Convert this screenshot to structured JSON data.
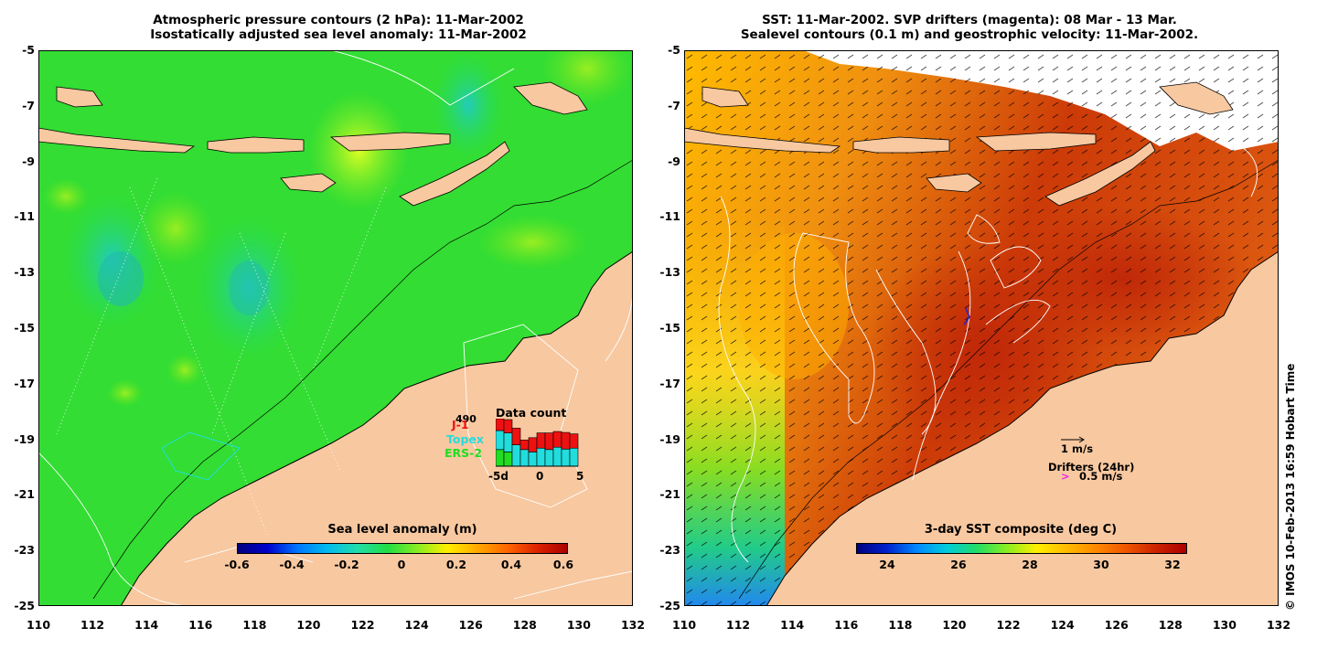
{
  "left_panel": {
    "title_line1": "Atmospheric pressure contours (2 hPa): 11-Mar-2002",
    "title_line2": "Isostatically adjusted sea level anomaly: 11-Mar-2002",
    "colorbar": {
      "label": "Sea level anomaly (m)",
      "ticks": [
        "-0.6",
        "-0.4",
        "-0.2",
        "0",
        "0.2",
        "0.4",
        "0.6"
      ]
    },
    "data_count": {
      "title": "Data count",
      "max_value": "490",
      "missions": [
        {
          "name": "J-1",
          "color": "#ee1111"
        },
        {
          "name": "Topex",
          "color": "#22dddd"
        },
        {
          "name": "ERS-2",
          "color": "#22dd22"
        }
      ],
      "x_labels": [
        "-5d",
        "0",
        "5"
      ],
      "bars": [
        {
          "ers": 0.35,
          "topex": 0.4,
          "j1": 0.25
        },
        {
          "ers": 0.3,
          "topex": 0.4,
          "j1": 0.28
        },
        {
          "ers": 0.0,
          "topex": 0.45,
          "j1": 0.35
        },
        {
          "ers": 0.0,
          "topex": 0.35,
          "j1": 0.2
        },
        {
          "ers": 0.0,
          "topex": 0.3,
          "j1": 0.3
        },
        {
          "ers": 0.0,
          "topex": 0.38,
          "j1": 0.32
        },
        {
          "ers": 0.0,
          "topex": 0.35,
          "j1": 0.35
        },
        {
          "ers": 0.0,
          "topex": 0.4,
          "j1": 0.33
        },
        {
          "ers": 0.0,
          "topex": 0.36,
          "j1": 0.35
        },
        {
          "ers": 0.0,
          "topex": 0.38,
          "j1": 0.3
        }
      ]
    }
  },
  "right_panel": {
    "title_line1": "SST: 11-Mar-2002. SVP drifters (magenta): 08 Mar - 13 Mar.",
    "title_line2": "Sealevel contours (0.1 m) and geostrophic velocity: 11-Mar-2002.",
    "colorbar": {
      "label": "3-day SST composite (deg C)",
      "ticks": [
        "24",
        "26",
        "28",
        "30",
        "32"
      ]
    },
    "velocity_legend": "1 m/s",
    "drifter_legend_title": "Drifters (24hr)",
    "drifter_legend_symbol": ">",
    "drifter_legend_value": "0.5 m/s"
  },
  "axes": {
    "lat_ticks": [
      "-5",
      "-7",
      "-9",
      "-11",
      "-13",
      "-15",
      "-17",
      "-19",
      "-21",
      "-23",
      "-25"
    ],
    "lon_ticks": [
      "110",
      "112",
      "114",
      "116",
      "118",
      "120",
      "122",
      "124",
      "126",
      "128",
      "130",
      "132"
    ]
  },
  "credit": "© IMOS 10-Feb-2013 16:59 Hobart Time",
  "colors": {
    "land": "#f8c8a0",
    "sla_background": "#22dd22",
    "sst_background": "#e86a10"
  }
}
